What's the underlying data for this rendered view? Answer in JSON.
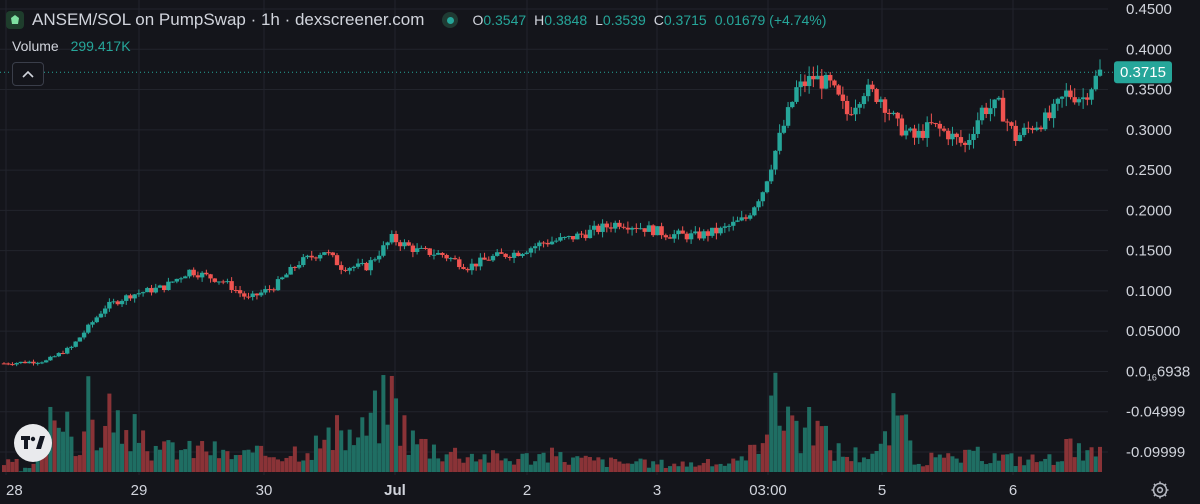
{
  "header": {
    "pair_title": "ANSEM/SOL on PumpSwap · 1h · dexscreener.com",
    "ohlc": [
      {
        "key": "O",
        "value": "0.3547"
      },
      {
        "key": "H",
        "value": "0.3848"
      },
      {
        "key": "L",
        "value": "0.3539"
      },
      {
        "key": "C",
        "value": "0.3715"
      }
    ],
    "change": "0.01679 (+4.74%)",
    "volume_label": "Volume",
    "volume_value": "299.417K"
  },
  "icons": {
    "logo": "pumpswap-logo-icon",
    "live": "live-status-dot-icon",
    "collapse": "chevron-up-icon",
    "tradingview": "tradingview-logo-icon",
    "settings": "gear-icon"
  },
  "colors": {
    "background": "#14151b",
    "grid": "#22242c",
    "up": "#26a69a",
    "down": "#ef5350",
    "up_volume": "#1f6e63",
    "down_volume": "#8a3337",
    "axis_text": "#d1d4dc",
    "price_tag": "#26a69a"
  },
  "chart_data": {
    "type": "candlestick",
    "title": "ANSEM/SOL on PumpSwap · 1h · dexscreener.com",
    "xlabel": "",
    "ylabel": "",
    "grid": true,
    "y_range": [
      -0.12,
      0.455
    ],
    "x_ticks": [
      "28",
      "29",
      "30",
      "Jul",
      "2",
      "3",
      "03:00",
      "5",
      "6"
    ],
    "y_ticks": [
      {
        "value": 0.45,
        "label": "0.4500"
      },
      {
        "value": 0.4,
        "label": "0.4000"
      },
      {
        "value": 0.35,
        "label": "0.3500"
      },
      {
        "value": 0.3,
        "label": "0.3000"
      },
      {
        "value": 0.25,
        "label": "0.2500"
      },
      {
        "value": 0.2,
        "label": "0.2000"
      },
      {
        "value": 0.15,
        "label": "0.1500"
      },
      {
        "value": 0.1,
        "label": "0.1000"
      },
      {
        "value": 0.05,
        "label": "0.05000"
      },
      {
        "value": 0.0,
        "label": "0.0",
        "sub": "16",
        "tail": "6938"
      },
      {
        "value": -0.05,
        "label": "-0.04999"
      },
      {
        "value": -0.1,
        "label": "-0.09999"
      }
    ],
    "last_price": {
      "value": 0.3715,
      "label": "0.3715"
    },
    "price_series": [
      {
        "name": "price",
        "points": [
          [
            0,
            0.01
          ],
          [
            5,
            0.013
          ],
          [
            8,
            0.03
          ],
          [
            12,
            0.08
          ],
          [
            15,
            0.095
          ],
          [
            19,
            0.105
          ],
          [
            22,
            0.125
          ],
          [
            26,
            0.112
          ],
          [
            29,
            0.09
          ],
          [
            32,
            0.105
          ],
          [
            35,
            0.135
          ],
          [
            38,
            0.15
          ],
          [
            40,
            0.13
          ],
          [
            43,
            0.13
          ],
          [
            46,
            0.165
          ],
          [
            49,
            0.15
          ],
          [
            52,
            0.145
          ],
          [
            55,
            0.13
          ],
          [
            58,
            0.142
          ],
          [
            61,
            0.148
          ],
          [
            64,
            0.16
          ],
          [
            67,
            0.165
          ],
          [
            70,
            0.175
          ],
          [
            73,
            0.185
          ],
          [
            76,
            0.178
          ],
          [
            79,
            0.17
          ],
          [
            82,
            0.168
          ],
          [
            85,
            0.175
          ],
          [
            88,
            0.19
          ],
          [
            90,
            0.225
          ],
          [
            92,
            0.29
          ],
          [
            94,
            0.35
          ],
          [
            96,
            0.365
          ],
          [
            98,
            0.355
          ],
          [
            100,
            0.32
          ],
          [
            102,
            0.35
          ],
          [
            104,
            0.34
          ],
          [
            106,
            0.305
          ],
          [
            108,
            0.29
          ],
          [
            110,
            0.305
          ],
          [
            112,
            0.295
          ],
          [
            114,
            0.28
          ],
          [
            116,
            0.325
          ],
          [
            118,
            0.33
          ],
          [
            120,
            0.29
          ],
          [
            122,
            0.305
          ],
          [
            124,
            0.315
          ],
          [
            126,
            0.345
          ],
          [
            128,
            0.34
          ],
          [
            130,
            0.3715
          ]
        ]
      }
    ],
    "volume_series": [
      {
        "name": "Volume",
        "points": [
          [
            2,
            0.01
          ],
          [
            4,
            0.1
          ],
          [
            5,
            0.65
          ],
          [
            6,
            0.45
          ],
          [
            7,
            0.85
          ],
          [
            8,
            0.55
          ],
          [
            9,
            0.25
          ],
          [
            10,
            0.75
          ],
          [
            11,
            0.4
          ],
          [
            12,
            0.5
          ],
          [
            13,
            0.9
          ],
          [
            14,
            0.3
          ],
          [
            15,
            0.35
          ],
          [
            16,
            0.55
          ],
          [
            18,
            0.2
          ],
          [
            20,
            0.3
          ],
          [
            22,
            0.25
          ],
          [
            24,
            0.3
          ],
          [
            26,
            0.2
          ],
          [
            30,
            0.2
          ],
          [
            34,
            0.25
          ],
          [
            36,
            0.3
          ],
          [
            38,
            0.35
          ],
          [
            40,
            0.45
          ],
          [
            42,
            0.4
          ],
          [
            46,
            0.9
          ],
          [
            48,
            0.4
          ],
          [
            52,
            0.25
          ],
          [
            56,
            0.2
          ],
          [
            60,
            0.15
          ],
          [
            64,
            0.2
          ],
          [
            68,
            0.15
          ],
          [
            72,
            0.12
          ],
          [
            76,
            0.1
          ],
          [
            80,
            0.1
          ],
          [
            84,
            0.1
          ],
          [
            88,
            0.12
          ],
          [
            90,
            0.55
          ],
          [
            91,
            0.95
          ],
          [
            92,
            0.65
          ],
          [
            93,
            0.85
          ],
          [
            94,
            0.55
          ],
          [
            95,
            0.4
          ],
          [
            96,
            0.6
          ],
          [
            98,
            0.3
          ],
          [
            100,
            0.2
          ],
          [
            104,
            0.25
          ],
          [
            106,
            0.75
          ],
          [
            108,
            0.15
          ],
          [
            112,
            0.15
          ],
          [
            116,
            0.2
          ],
          [
            120,
            0.15
          ],
          [
            124,
            0.15
          ],
          [
            126,
            0.3
          ],
          [
            128,
            0.2
          ],
          [
            130,
            0.2
          ]
        ]
      }
    ]
  }
}
